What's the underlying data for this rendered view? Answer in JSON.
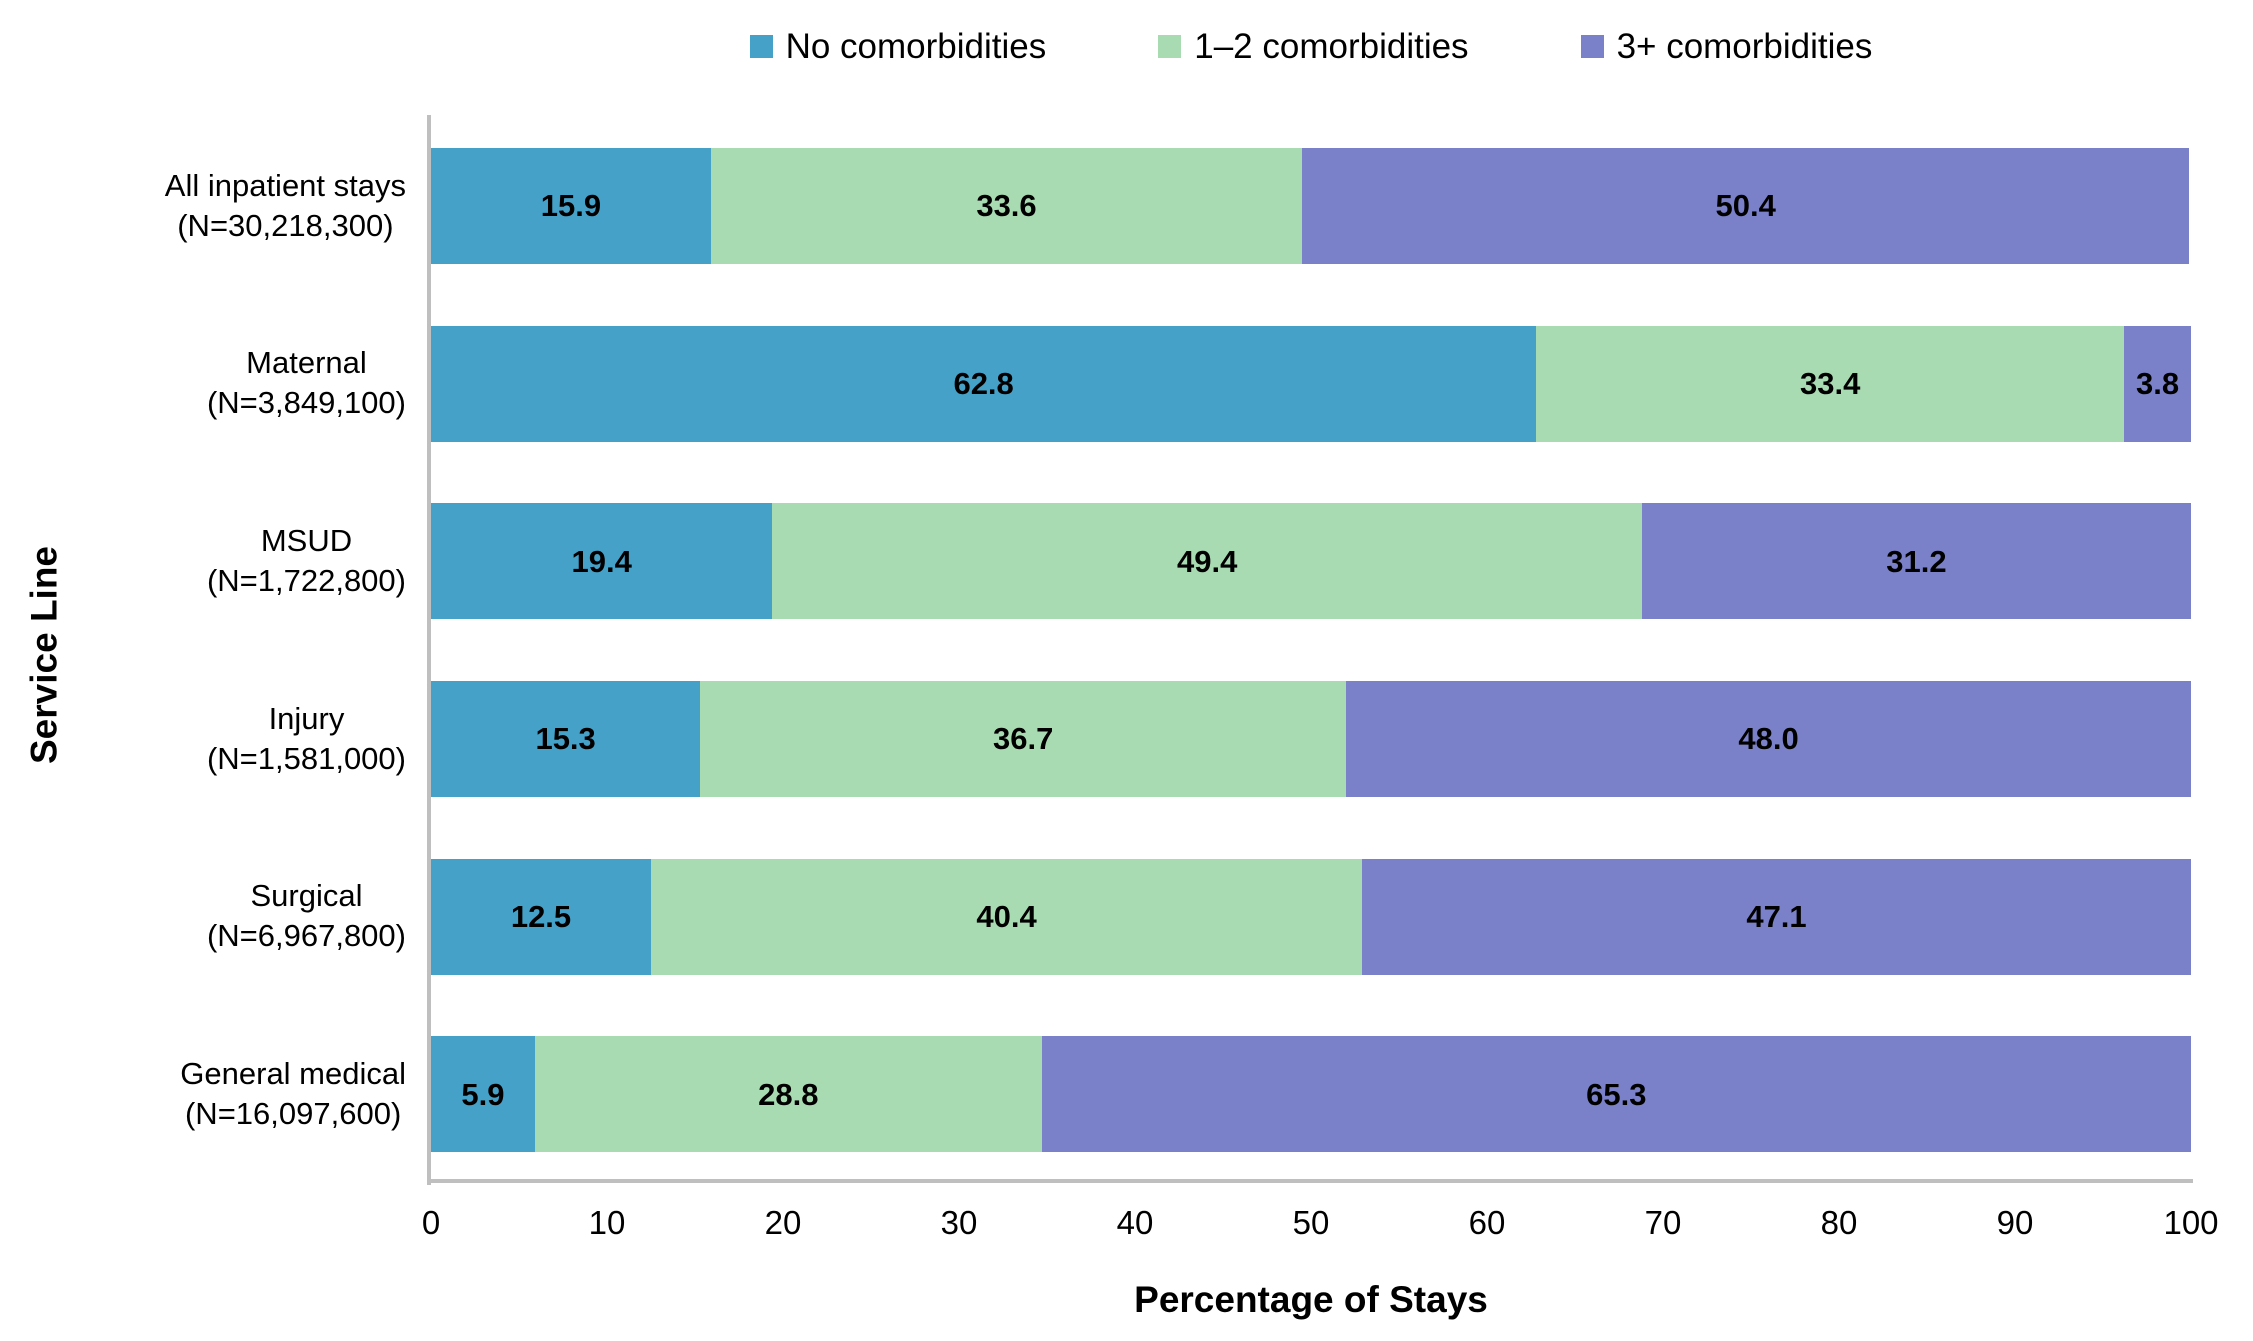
{
  "chart_data": {
    "type": "bar",
    "variant": "horizontal-stacked",
    "title": "",
    "xlabel": "Percentage of Stays",
    "ylabel": "Service Line",
    "xlim": [
      0,
      100
    ],
    "xticks": [
      "0",
      "10",
      "20",
      "30",
      "40",
      "50",
      "60",
      "70",
      "80",
      "90",
      "100"
    ],
    "grid": false,
    "legend_position": "top",
    "series": [
      {
        "name": "No comorbidities",
        "color": "#45A1C8"
      },
      {
        "name": "1–2 comorbidities",
        "color": "#A9DBB3"
      },
      {
        "name": "3+ comorbidities",
        "color": "#7A81C8"
      }
    ],
    "categories": [
      {
        "label": "All inpatient stays",
        "n_label": "(N=30,218,300)",
        "values": [
          15.9,
          33.6,
          50.4
        ],
        "value_labels": [
          "15.9",
          "33.6",
          "50.4"
        ]
      },
      {
        "label": "Maternal",
        "n_label": "(N=3,849,100)",
        "values": [
          62.8,
          33.4,
          3.8
        ],
        "value_labels": [
          "62.8",
          "33.4",
          "3.8"
        ]
      },
      {
        "label": "MSUD",
        "n_label": "(N=1,722,800)",
        "values": [
          19.4,
          49.4,
          31.2
        ],
        "value_labels": [
          "19.4",
          "49.4",
          "31.2"
        ]
      },
      {
        "label": "Injury",
        "n_label": "(N=1,581,000)",
        "values": [
          15.3,
          36.7,
          48.0
        ],
        "value_labels": [
          "15.3",
          "36.7",
          "48.0"
        ]
      },
      {
        "label": "Surgical",
        "n_label": "(N=6,967,800)",
        "values": [
          12.5,
          40.4,
          47.1
        ],
        "value_labels": [
          "12.5",
          "40.4",
          "47.1"
        ]
      },
      {
        "label": "General medical",
        "n_label": "(N=16,097,600)",
        "values": [
          5.9,
          28.8,
          65.3
        ],
        "value_labels": [
          "5.9",
          "28.8",
          "65.3"
        ]
      }
    ],
    "colors": {
      "axis_line": "#BFBFBF",
      "text": "#000000",
      "background": "#FFFFFF"
    }
  }
}
